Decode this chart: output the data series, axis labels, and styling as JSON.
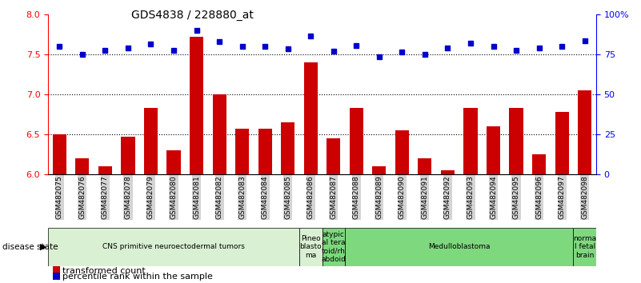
{
  "title": "GDS4838 / 228880_at",
  "samples": [
    "GSM482075",
    "GSM482076",
    "GSM482077",
    "GSM482078",
    "GSM482079",
    "GSM482080",
    "GSM482081",
    "GSM482082",
    "GSM482083",
    "GSM482084",
    "GSM482085",
    "GSM482086",
    "GSM482087",
    "GSM482088",
    "GSM482089",
    "GSM482090",
    "GSM482091",
    "GSM482092",
    "GSM482093",
    "GSM482094",
    "GSM482095",
    "GSM482096",
    "GSM482097",
    "GSM482098"
  ],
  "bar_values": [
    6.5,
    6.2,
    6.1,
    6.47,
    6.83,
    6.3,
    7.72,
    7.0,
    6.57,
    6.57,
    6.65,
    7.4,
    6.45,
    6.83,
    6.1,
    6.55,
    6.2,
    6.05,
    6.83,
    6.6,
    6.83,
    6.25,
    6.78,
    7.05
  ],
  "dot_values": [
    7.6,
    7.5,
    7.55,
    7.58,
    7.63,
    7.55,
    7.8,
    7.66,
    7.6,
    7.6,
    7.57,
    7.73,
    7.54,
    7.61,
    7.47,
    7.53,
    7.5,
    7.58,
    7.64,
    7.6,
    7.55,
    7.58,
    7.6,
    7.67
  ],
  "ylim": [
    6.0,
    8.0
  ],
  "yticks_left": [
    6.0,
    6.5,
    7.0,
    7.5,
    8.0
  ],
  "yticks_right": [
    0,
    25,
    50,
    75,
    100
  ],
  "yticks_right_labels": [
    "0",
    "25",
    "50",
    "75",
    "100%"
  ],
  "hlines": [
    6.5,
    7.0,
    7.5
  ],
  "bar_color": "#cc0000",
  "dot_color": "#0000cc",
  "groups": [
    {
      "label": "CNS primitive neuroectodermal tumors",
      "start": 0,
      "end": 11,
      "color": "#d9f0d3"
    },
    {
      "label": "Pineo\nblasto\nma",
      "start": 11,
      "end": 12,
      "color": "#d9f0d3"
    },
    {
      "label": "atypic\nal tera\ntoid/rh\nabdoid",
      "start": 12,
      "end": 13,
      "color": "#7ed87e"
    },
    {
      "label": "Medulloblastoma",
      "start": 13,
      "end": 23,
      "color": "#7ed87e"
    },
    {
      "label": "norma\nl fetal\nbrain",
      "start": 23,
      "end": 24,
      "color": "#7ed87e"
    }
  ],
  "xlabel_disease_state": "disease state",
  "legend_bar_label": "transformed count",
  "legend_dot_label": "percentile rank within the sample",
  "bar_width": 0.6,
  "xtick_bg": "#d4d4d4",
  "spine_color": "#000000"
}
